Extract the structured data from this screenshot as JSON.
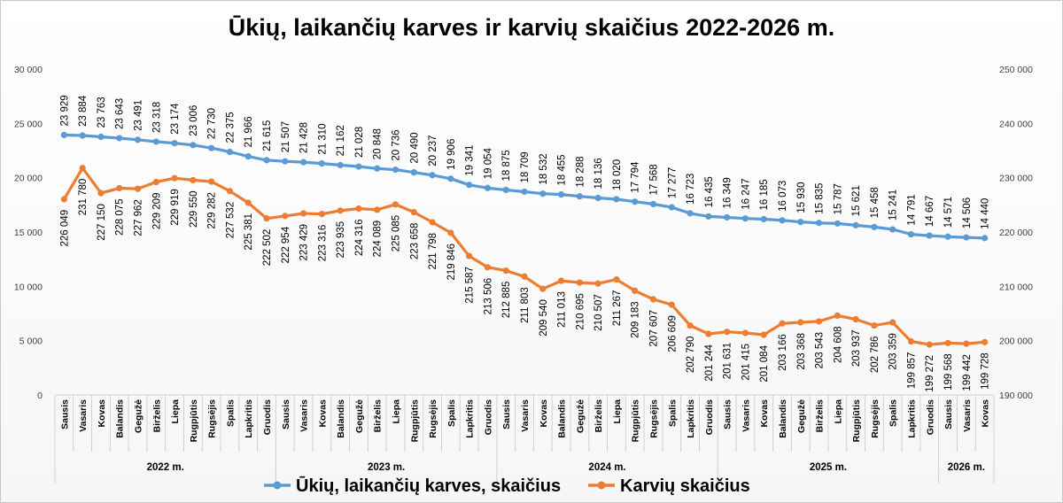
{
  "chart_data": {
    "type": "line",
    "title": "Ūkių, laikančių karves ir karvių skaičius 2022-2026 m.",
    "categories": [
      "Sausis",
      "Vasaris",
      "Kovas",
      "Balandis",
      "Gegužė",
      "Birželis",
      "Liepa",
      "Rugpjūtis",
      "Rugsėjis",
      "Spalis",
      "Lapkritis",
      "Gruodis",
      "Sausis",
      "Vasaris",
      "Kovas",
      "Balandis",
      "Gegužė",
      "Birželis",
      "Liepa",
      "Rugpjūtis",
      "Rugsėjis",
      "Spalis",
      "Lapkritis",
      "Gruodis",
      "Sausis",
      "Vasaris",
      "Kovas",
      "Balandis",
      "Gegužė",
      "Birželis",
      "Liepa",
      "Rugpjūtis",
      "Rugsėjis",
      "Spalis",
      "Lapkritis",
      "Gruodis",
      "Sausis",
      "Vasaris",
      "Kovas",
      "Balandis",
      "Gegužė",
      "Birželis",
      "Liepa",
      "Rugpjūtis",
      "Rugsėjis",
      "Spalis",
      "Lapkritis",
      "Gruodis",
      "Sausis",
      "Vasaris",
      "Kovas"
    ],
    "year_groups": [
      {
        "label": "2022 m.",
        "count": 12
      },
      {
        "label": "2023 m.",
        "count": 12
      },
      {
        "label": "2024 m.",
        "count": 12
      },
      {
        "label": "2025 m.",
        "count": 12
      },
      {
        "label": "2026 m.",
        "count": 3
      }
    ],
    "y_left": {
      "min": 0,
      "max": 30000,
      "step": 5000,
      "tick_labels": [
        "0",
        "5 000",
        "10 000",
        "15 000",
        "20 000",
        "25 000",
        "30 000"
      ]
    },
    "y_right": {
      "min": 190000,
      "max": 250000,
      "step": 10000,
      "tick_labels": [
        "190 000",
        "200 000",
        "210 000",
        "220 000",
        "230 000",
        "240 000",
        "250 000"
      ]
    },
    "grid": false,
    "legend_position": "bottom",
    "series": [
      {
        "name": "Ūkių, laikančių karves, skaičius",
        "axis": "left",
        "color": "#5b9bd5",
        "values": [
          23929,
          23884,
          23763,
          23643,
          23491,
          23318,
          23174,
          23006,
          22730,
          22375,
          21966,
          21615,
          21507,
          21428,
          21310,
          21162,
          21028,
          20848,
          20736,
          20490,
          20237,
          19906,
          19341,
          19054,
          18875,
          18709,
          18532,
          18455,
          18288,
          18136,
          18020,
          17794,
          17568,
          17277,
          16723,
          16435,
          16349,
          16247,
          16185,
          16073,
          15930,
          15835,
          15787,
          15621,
          15458,
          15241,
          14791,
          14667,
          14571,
          14506,
          14440
        ],
        "labels": [
          "23 929",
          "23 884",
          "23 763",
          "23 643",
          "23 491",
          "23 318",
          "23 174",
          "23 006",
          "22 730",
          "22 375",
          "21 966",
          "21 615",
          "21 507",
          "21 428",
          "21 310",
          "21 162",
          "21 028",
          "20 848",
          "20 736",
          "20 490",
          "20 237",
          "19 906",
          "19 341",
          "19 054",
          "18 875",
          "18 709",
          "18 532",
          "18 455",
          "18 288",
          "18 136",
          "18 020",
          "17 794",
          "17 568",
          "17 277",
          "16 723",
          "16 435",
          "16 349",
          "16 247",
          "16 185",
          "16 073",
          "15 930",
          "15 835",
          "15 787",
          "15 621",
          "15 458",
          "15 241",
          "14 791",
          "14 667",
          "14 571",
          "14 506",
          "14 440"
        ]
      },
      {
        "name": "Karvių skaičius",
        "axis": "right",
        "color": "#ed7d31",
        "values": [
          226049,
          231780,
          227150,
          228075,
          227962,
          229209,
          229919,
          229550,
          229282,
          227532,
          225381,
          222502,
          222954,
          223429,
          223316,
          223935,
          224316,
          224089,
          225085,
          223658,
          221798,
          219846,
          215587,
          213506,
          212885,
          211803,
          209540,
          211013,
          210695,
          210507,
          211267,
          209183,
          207607,
          206609,
          202790,
          201244,
          201631,
          201415,
          201084,
          203166,
          203368,
          203543,
          204608,
          203937,
          202786,
          203359,
          199857,
          199272,
          199568,
          199442,
          199728
        ],
        "labels": [
          "226 049",
          "231 780",
          "227 150",
          "228 075",
          "227 962",
          "229 209",
          "229 919",
          "229 550",
          "229 282",
          "227 532",
          "225 381",
          "222 502",
          "222 954",
          "223 429",
          "223 316",
          "223 935",
          "224 316",
          "224 089",
          "225 085",
          "223 658",
          "221 798",
          "219 846",
          "215 587",
          "213 506",
          "212 885",
          "211 803",
          "209 540",
          "211 013",
          "210 695",
          "210 507",
          "211 267",
          "209 183",
          "207 607",
          "206 609",
          "202 790",
          "201 244",
          "201 631",
          "201 415",
          "201 084",
          "203 166",
          "203 368",
          "203 543",
          "204 608",
          "203 937",
          "202 786",
          "203 359",
          "199 857",
          "199 272",
          "199 568",
          "199 442",
          "199 728"
        ]
      }
    ]
  }
}
